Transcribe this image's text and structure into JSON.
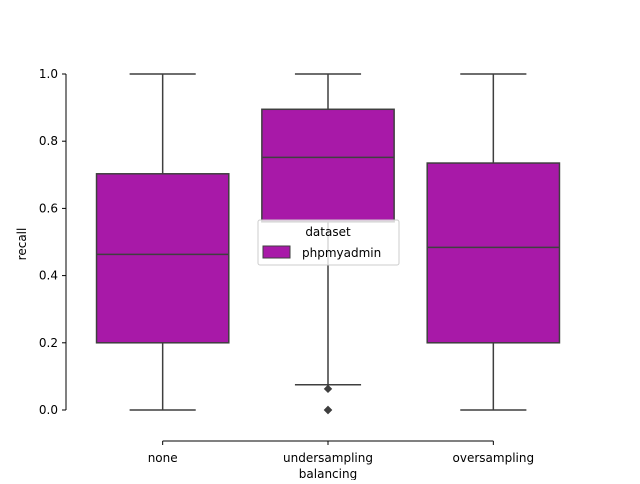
{
  "chart_data": {
    "type": "box",
    "title": "",
    "xlabel": "balancing",
    "ylabel": "recall",
    "ylim": [
      -0.05,
      1.0
    ],
    "yticks": [
      0.0,
      0.2,
      0.4,
      0.6,
      0.8,
      1.0
    ],
    "ytick_labels": [
      "0.0",
      "0.2",
      "0.4",
      "0.6",
      "0.8",
      "1.0"
    ],
    "categories": [
      "none",
      "undersampling",
      "oversampling"
    ],
    "legend": {
      "title": "dataset",
      "placement": "center",
      "entries": [
        {
          "label": "phpmyadmin",
          "color": "#a819a8"
        }
      ]
    },
    "series": [
      {
        "name": "phpmyadmin",
        "color": "#a819a8",
        "boxes": [
          {
            "category": "none",
            "whisker_low": 0.0,
            "q1": 0.2,
            "median": 0.463,
            "q3": 0.703,
            "whisker_high": 1.0,
            "outliers": []
          },
          {
            "category": "undersampling",
            "whisker_low": 0.075,
            "q1": 0.56,
            "median": 0.752,
            "q3": 0.895,
            "whisker_high": 1.0,
            "outliers": [
              0.063,
              0.0,
              0.0
            ]
          },
          {
            "category": "oversampling",
            "whisker_low": 0.0,
            "q1": 0.2,
            "median": 0.484,
            "q3": 0.735,
            "whisker_high": 1.0,
            "outliers": []
          }
        ]
      }
    ],
    "grid": false
  },
  "colors": {
    "box_fill": "#a819a8",
    "line": "#3f3f3f",
    "axis": "#000000"
  }
}
